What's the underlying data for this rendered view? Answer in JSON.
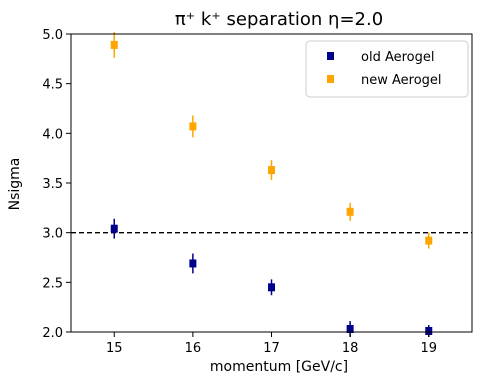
{
  "chart_data": {
    "type": "scatter",
    "title": "π⁺ k⁺ separation   η=2.0",
    "xlabel": "momentum [GeV/c]",
    "ylabel": "Nsigma",
    "xlim": [
      14.45,
      19.55
    ],
    "ylim": [
      2.0,
      5.0
    ],
    "x_ticks": [
      15,
      16,
      17,
      18,
      19
    ],
    "y_ticks": [
      2.0,
      2.5,
      3.0,
      3.5,
      4.0,
      4.5,
      5.0
    ],
    "grid": false,
    "legend_position": "top-right",
    "reference_line": {
      "y": 3.0,
      "style": "dashed",
      "color": "#000000"
    },
    "series": [
      {
        "name": "old Aerogel",
        "color": "#00008b",
        "x": [
          15,
          16,
          17,
          18,
          19
        ],
        "y": [
          3.04,
          2.69,
          2.45,
          2.03,
          2.01
        ],
        "yerr": [
          0.1,
          0.1,
          0.08,
          0.08,
          0.06
        ]
      },
      {
        "name": "new Aerogel",
        "color": "#ffa500",
        "x": [
          15,
          16,
          17,
          18,
          19
        ],
        "y": [
          4.89,
          4.07,
          3.63,
          3.21,
          2.92
        ],
        "yerr": [
          0.13,
          0.11,
          0.1,
          0.09,
          0.08
        ]
      }
    ]
  }
}
